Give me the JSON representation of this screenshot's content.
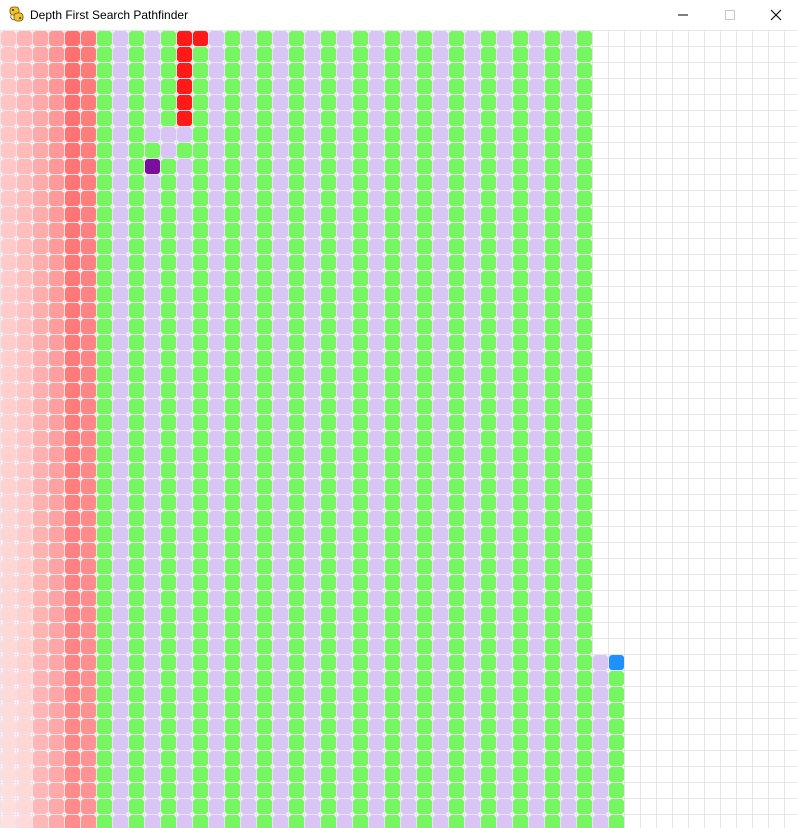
{
  "window": {
    "title": "Depth First Search Pathfinder",
    "icon": "python-snake-icon",
    "controls": [
      "minimize-icon",
      "maximize-icon",
      "close-icon"
    ]
  },
  "grid": {
    "columns": 50,
    "visible_rows": 50,
    "background": "#ffffff",
    "gridline_color": "#e6e6e6",
    "colors": {
      "start": "#7a0f9e",
      "end": "#1e90ff",
      "path": "#ff1a1a",
      "green": "#77f562",
      "lavender": "#d8c5f5",
      "frontier_shade": "#ff6a6a",
      "empty": "#ffffff"
    },
    "start_cell": {
      "col": 9,
      "row": 8
    },
    "end_cell": {
      "col": 38,
      "row": 39
    }
  }
}
